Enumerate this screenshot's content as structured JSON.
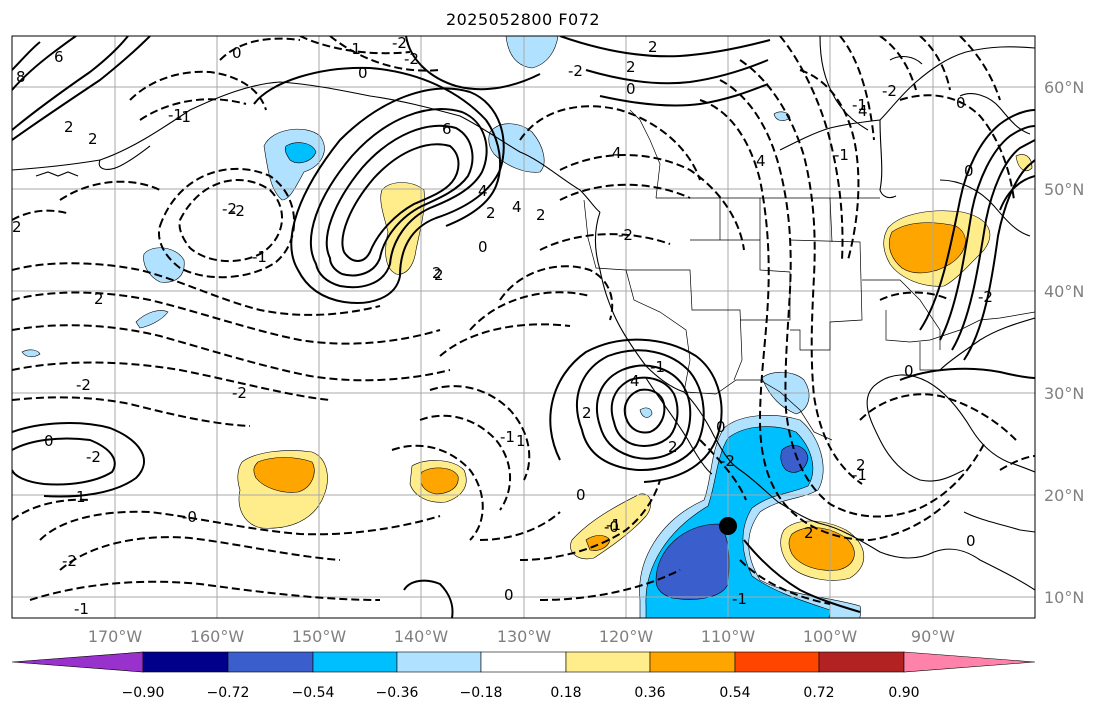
{
  "title": "2025052800 F072",
  "map": {
    "lon_ticks": [
      "170°W",
      "160°W",
      "150°W",
      "140°W",
      "130°W",
      "120°W",
      "110°W",
      "100°W",
      "90°W"
    ],
    "lat_ticks": [
      "60°N",
      "50°N",
      "40°N",
      "30°N",
      "20°N",
      "10°N"
    ],
    "extent": {
      "lon": [
        -180,
        -80
      ],
      "lat": [
        8,
        65
      ]
    },
    "gridlines": true,
    "contour_labels": [
      "8",
      "6",
      "2",
      "2",
      "2",
      "-1",
      "-2",
      "-1",
      "0",
      "2",
      "-2",
      "-2",
      "2",
      "6",
      "4",
      "0",
      "2",
      "4",
      "-1",
      "-2",
      "-2",
      "0",
      "-2",
      "2",
      "4",
      "2",
      "0",
      "2",
      "-2",
      "2",
      "0",
      "1",
      "-0",
      "-1",
      "0",
      "-2",
      "-2",
      "1",
      "-1",
      "0",
      "-1",
      "-1",
      "4",
      "-1",
      "2",
      "0",
      "-2",
      "2",
      "0",
      "2",
      "-1",
      "0",
      "-2",
      "0",
      "0",
      "-1",
      "-2",
      "-1",
      "-0",
      "2",
      "4",
      "4",
      "-2",
      "-1"
    ],
    "marker": {
      "lon": -110,
      "lat": 17,
      "symbol": "filled-circle",
      "color": "#000000"
    }
  },
  "colorbar": {
    "ticks": [
      "−0.90",
      "−0.72",
      "−0.54",
      "−0.36",
      "−0.18",
      "0.18",
      "0.36",
      "0.54",
      "0.72",
      "0.90"
    ],
    "colors": [
      "#9932cc",
      "#00008b",
      "#3a5fcd",
      "#00bfff",
      "#b0e2ff",
      "#ffffff",
      "#ffec8b",
      "#ffa500",
      "#ff4500",
      "#b22222",
      "#ff82ab"
    ],
    "extend": "both"
  },
  "shading_colors": {
    "pos_weak": "#ffec8b",
    "pos_mid": "#ffa500",
    "neg_weak": "#b0e2ff",
    "neg_mid": "#00bfff",
    "neg_strong": "#3a5fcd"
  },
  "coast_color": "#000000",
  "grid_color": "#a9a9a9"
}
